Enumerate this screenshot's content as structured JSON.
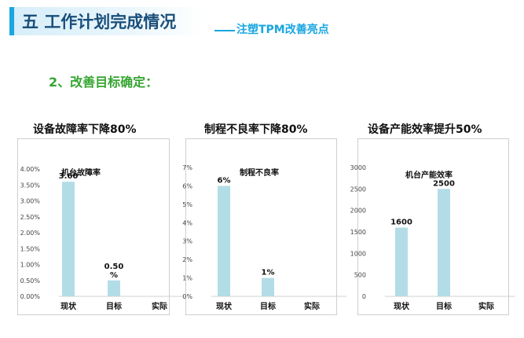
{
  "header": {
    "title": "五 工作计划完成情况",
    "subtitle": "注塑TPM改善亮点"
  },
  "section": {
    "heading": "2、改善目标确定："
  },
  "colors": {
    "accent": "#1aa6e0",
    "title_text": "#1a4f7a",
    "heading_green": "#35a530",
    "bar": "#b3dde6"
  },
  "chart_data": [
    {
      "type": "bar",
      "title": "设备故障率下降80%",
      "series_label": "机台故障率",
      "categories": [
        "现状",
        "目标",
        "实际"
      ],
      "values": [
        3.6,
        0.5,
        null
      ],
      "data_labels": [
        [
          "3.60"
        ],
        [
          "0.50",
          "%"
        ],
        []
      ],
      "y_ticks": [
        "0.00%",
        "0.50%",
        "1.00%",
        "1.50%",
        "2.00%",
        "2.50%",
        "3.00%",
        "3.50%",
        "4.00%"
      ],
      "ylim": [
        0,
        4
      ],
      "grid": false
    },
    {
      "type": "bar",
      "title": "制程不良率下降80%",
      "series_label": "制程不良率",
      "categories": [
        "现状",
        "目标",
        "实际"
      ],
      "values": [
        6,
        1,
        null
      ],
      "data_labels": [
        [
          "6%"
        ],
        [
          "1%"
        ],
        []
      ],
      "y_ticks": [
        "0%",
        "1%",
        "2%",
        "3%",
        "4%",
        "5%",
        "6%",
        "7%"
      ],
      "ylim": [
        0,
        7
      ],
      "grid": false
    },
    {
      "type": "bar",
      "title": "设备产能效率提升50%",
      "series_label": "机台产能效率",
      "categories": [
        "现状",
        "目标",
        "实际"
      ],
      "values": [
        1600,
        2500,
        null
      ],
      "data_labels": [
        [
          "1600"
        ],
        [
          "2500"
        ],
        []
      ],
      "y_ticks": [
        "0",
        "500",
        "1000",
        "1500",
        "2000",
        "2500",
        "3000"
      ],
      "ylim": [
        0,
        3000
      ],
      "grid": false
    }
  ]
}
